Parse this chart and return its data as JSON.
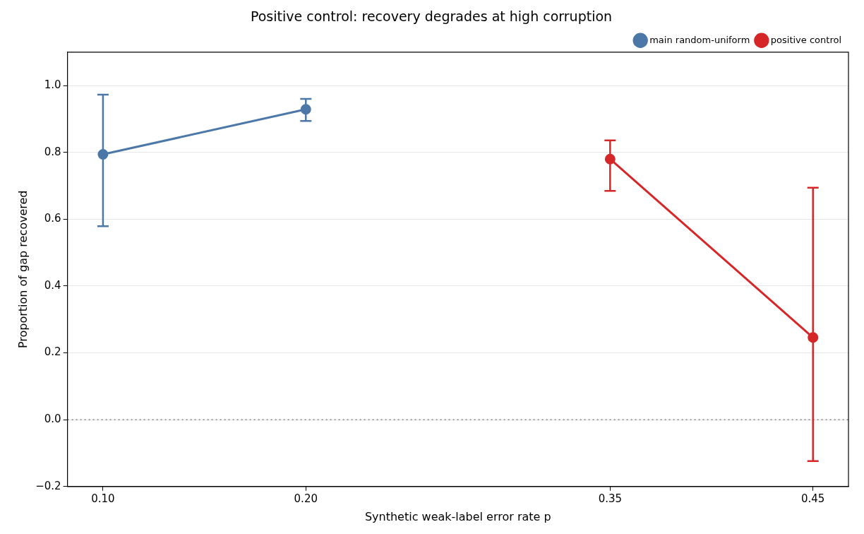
{
  "chart_data": {
    "type": "line",
    "title": "Positive control: recovery degrades at high corruption",
    "xlabel": "Synthetic weak-label error rate p",
    "ylabel": "Proportion of gap recovered",
    "series": [
      {
        "name": "main random-uniform",
        "color": "#4c78a8",
        "x": [
          0.1,
          0.2
        ],
        "values": [
          0.794,
          0.929
        ],
        "errors": [
          [
            0.579,
            0.973
          ],
          [
            0.894,
            0.96
          ]
        ]
      },
      {
        "name": "positive control",
        "color": "#d62728",
        "x": [
          0.35,
          0.45
        ],
        "values": [
          0.78,
          0.246
        ],
        "errors": [
          [
            0.685,
            0.836
          ],
          [
            -0.124,
            0.694
          ]
        ]
      }
    ],
    "xlim": [
      0.0825,
      0.4675
    ],
    "xticks": [
      {
        "value": 0.1,
        "label": "0.10"
      },
      {
        "value": 0.2,
        "label": "0.20"
      },
      {
        "value": 0.35,
        "label": "0.35"
      },
      {
        "value": 0.45,
        "label": "0.45"
      }
    ],
    "ylim": [
      -0.2,
      1.1
    ],
    "yticks": [
      {
        "value": -0.2,
        "label": "−0.2"
      },
      {
        "value": 0,
        "label": "0.0"
      },
      {
        "value": 0.2,
        "label": "0.2"
      },
      {
        "value": 0.4,
        "label": "0.4"
      },
      {
        "value": 0.6,
        "label": "0.6"
      },
      {
        "value": 0.8,
        "label": "0.8"
      },
      {
        "value": 1,
        "label": "1.0"
      }
    ],
    "grid": "y",
    "legend": "top right",
    "marker": "circle",
    "line_style": "solid",
    "ref_lines": [
      {
        "axis": "y",
        "value": 0,
        "color": "#808080",
        "line_style": "dotted"
      }
    ]
  }
}
